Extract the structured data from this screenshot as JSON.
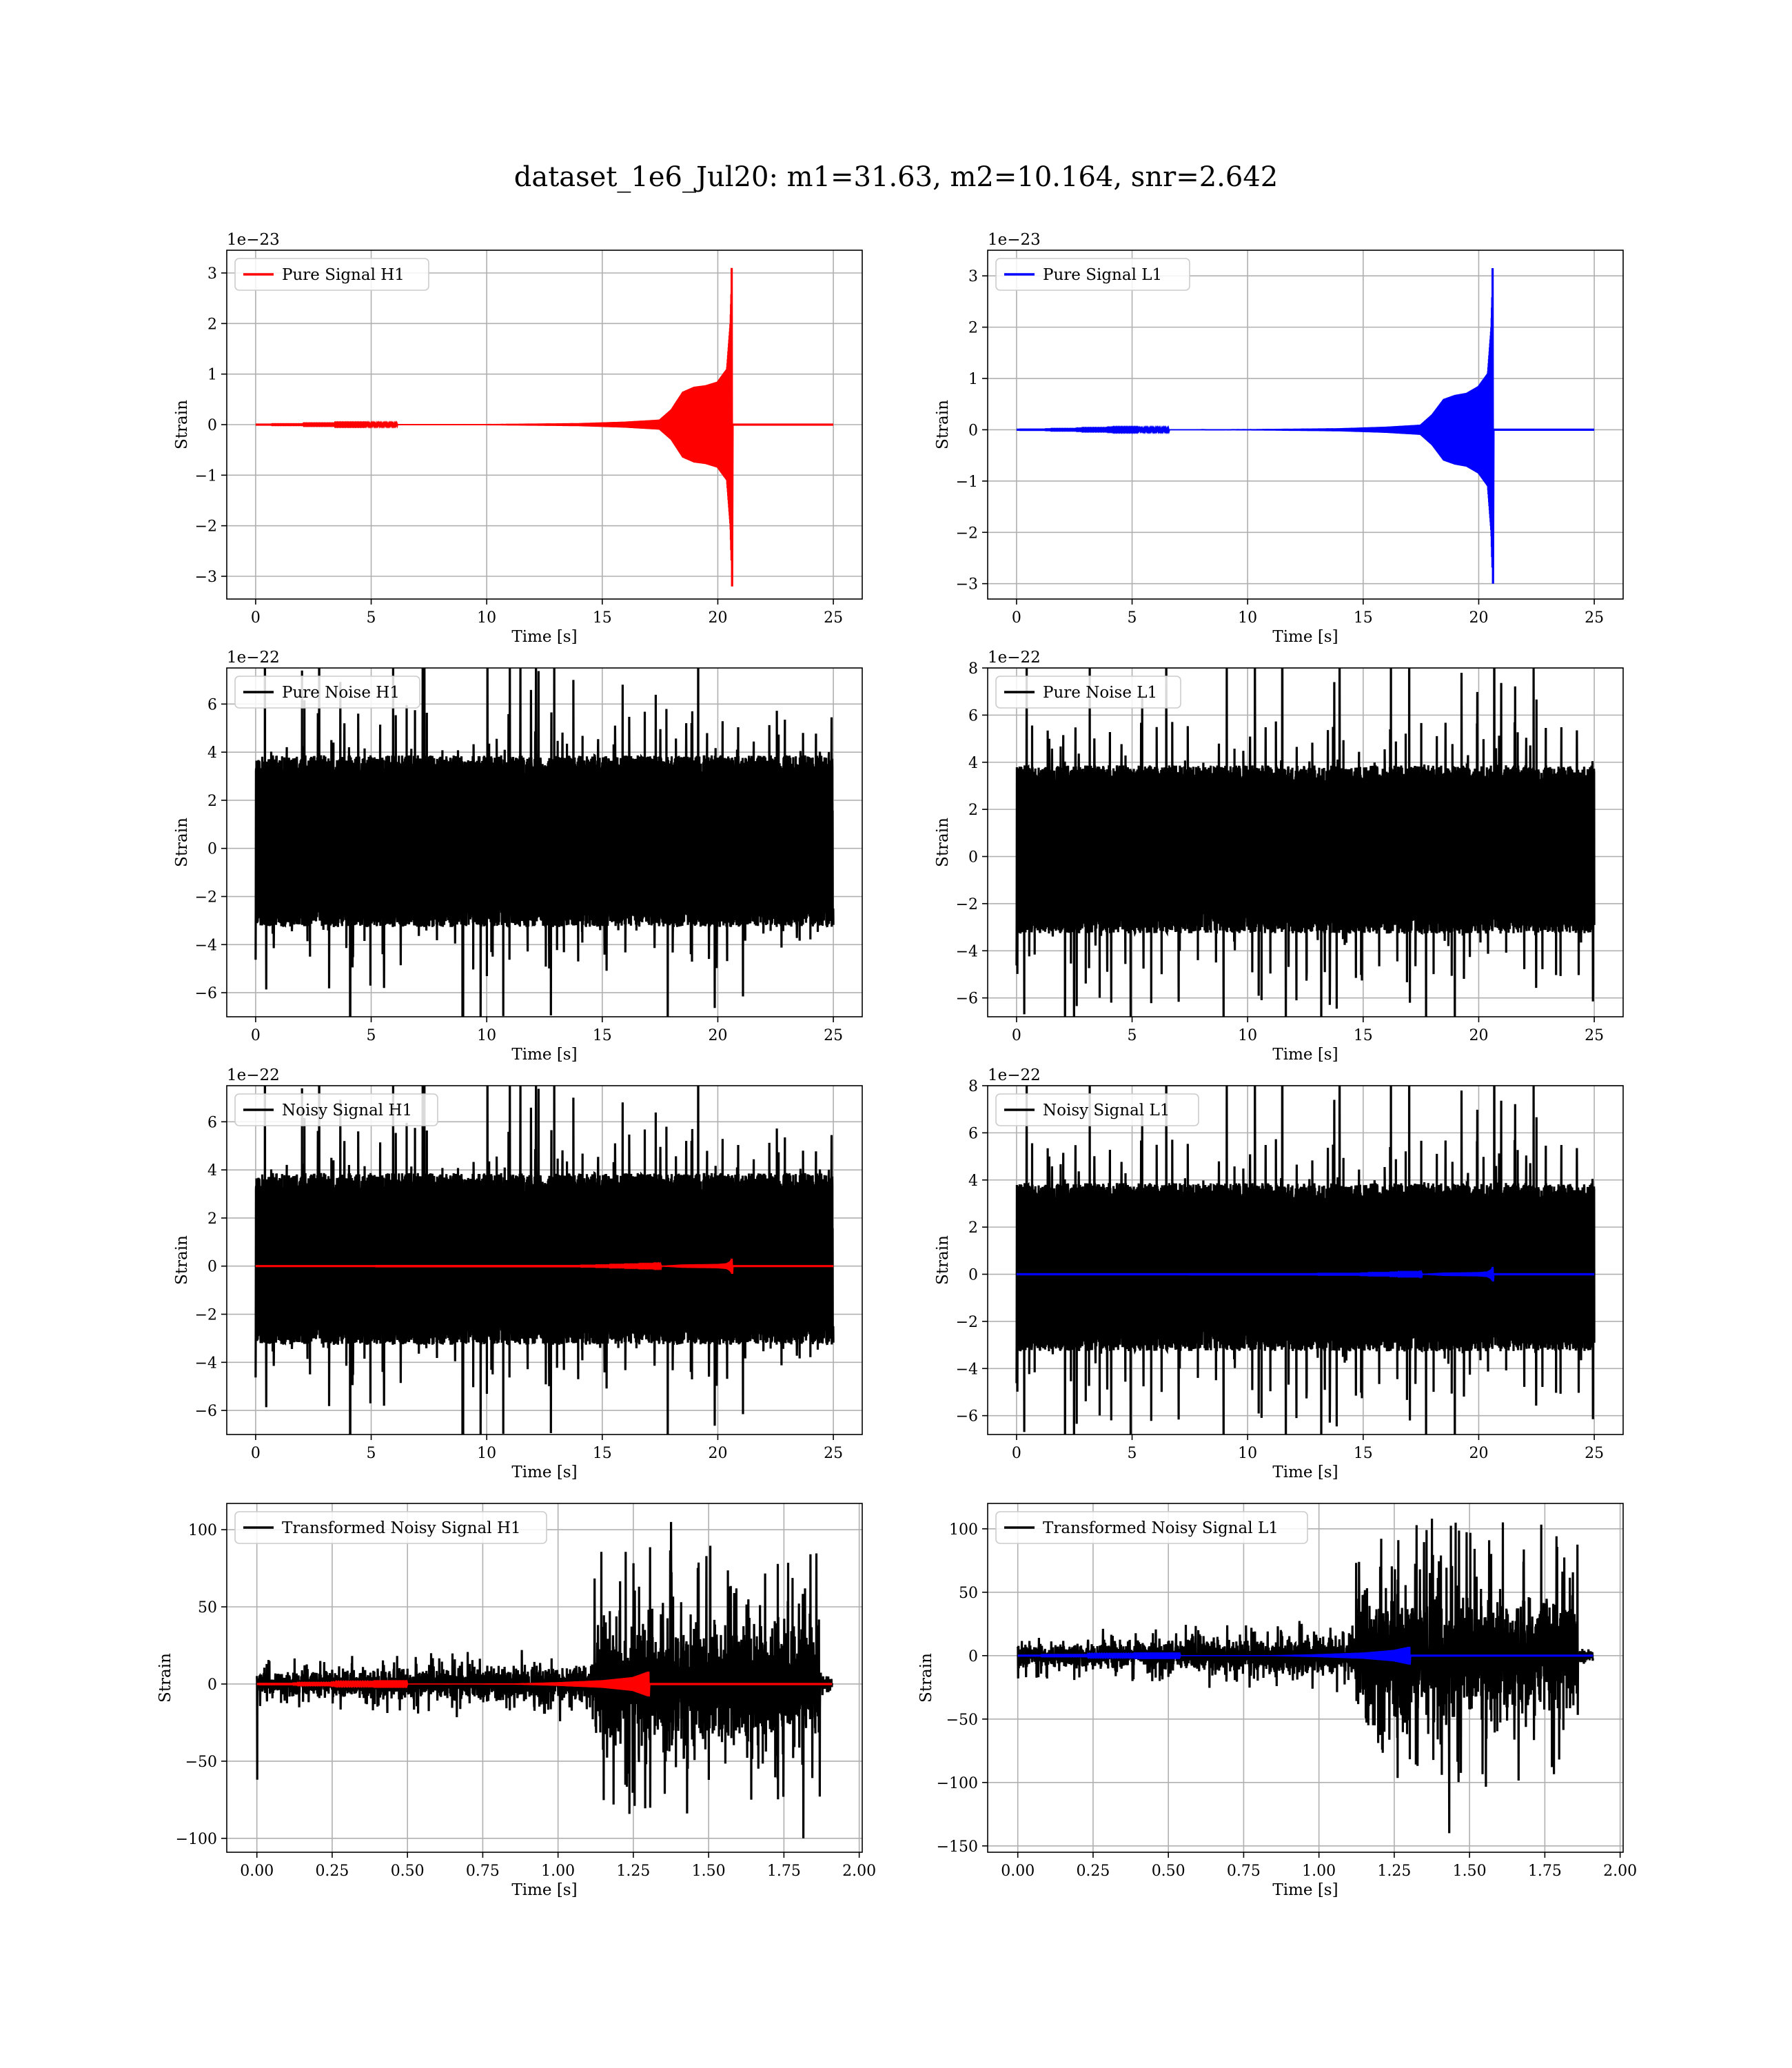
{
  "figure": {
    "suptitle": "dataset_1e6_Jul20: m1=31.63, m2=10.164, snr=2.642"
  },
  "chart_data": [
    {
      "type": "line",
      "id": "sig_h1",
      "legend": "Pure Signal H1",
      "legend_loc": "upper-left",
      "xlabel": "Time [s]",
      "ylabel": "Strain",
      "grid": true,
      "offset_text": "1e−23",
      "xlim": [
        -1.25,
        26.25
      ],
      "ylim": [
        -3.45,
        3.45
      ],
      "xticks": [
        0,
        5,
        10,
        15,
        20,
        25
      ],
      "xticklabels": [
        "0",
        "5",
        "10",
        "15",
        "20",
        "25"
      ],
      "yticks": [
        -3,
        -2,
        -1,
        0,
        1,
        2,
        3
      ],
      "yticklabels": [
        "−3",
        "−2",
        "−1",
        "0",
        "1",
        "2",
        "3"
      ],
      "series": [
        {
          "kind": "chirp",
          "color": "#ff0000",
          "t_start": 0,
          "t_end": 25,
          "t_merger": 20.6,
          "envelope": [
            [
              0,
              0
            ],
            [
              10,
              0.01
            ],
            [
              14,
              0.03
            ],
            [
              16,
              0.06
            ],
            [
              17.5,
              0.1
            ],
            [
              18,
              0.3
            ],
            [
              18.5,
              0.65
            ],
            [
              19,
              0.75
            ],
            [
              19.5,
              0.78
            ],
            [
              20,
              0.85
            ],
            [
              20.4,
              1.1
            ],
            [
              20.55,
              2.0
            ],
            [
              20.62,
              3.1
            ]
          ],
          "peak": [
            3.1,
            -3.2
          ],
          "amp_pos": 1,
          "amp_neg": 1
        }
      ]
    },
    {
      "type": "line",
      "id": "sig_l1",
      "legend": "Pure Signal L1",
      "legend_loc": "upper-left",
      "xlabel": "Time [s]",
      "ylabel": "Strain",
      "grid": true,
      "offset_text": "1e−23",
      "xlim": [
        -1.25,
        26.25
      ],
      "ylim": [
        -3.3,
        3.5
      ],
      "xticks": [
        0,
        5,
        10,
        15,
        20,
        25
      ],
      "xticklabels": [
        "0",
        "5",
        "10",
        "15",
        "20",
        "25"
      ],
      "yticks": [
        -3,
        -2,
        -1,
        0,
        1,
        2,
        3
      ],
      "yticklabels": [
        "−3",
        "−2",
        "−1",
        "0",
        "1",
        "2",
        "3"
      ],
      "series": [
        {
          "kind": "chirp",
          "color": "#0000ff",
          "t_start": 0,
          "t_end": 25,
          "t_merger": 20.6,
          "envelope": [
            [
              0,
              0
            ],
            [
              10,
              0.01
            ],
            [
              14,
              0.03
            ],
            [
              16,
              0.06
            ],
            [
              17.5,
              0.1
            ],
            [
              18,
              0.3
            ],
            [
              18.5,
              0.6
            ],
            [
              19,
              0.68
            ],
            [
              19.5,
              0.72
            ],
            [
              20,
              0.85
            ],
            [
              20.4,
              1.1
            ],
            [
              20.55,
              2.0
            ],
            [
              20.62,
              3.1
            ]
          ],
          "peak": [
            3.15,
            -3.0
          ],
          "amp_pos": 1,
          "amp_neg": 1
        }
      ]
    },
    {
      "type": "line",
      "id": "noise_h1",
      "legend": "Pure Noise H1",
      "legend_loc": "upper-left",
      "xlabel": "Time [s]",
      "ylabel": "Strain",
      "grid": true,
      "offset_text": "1e−22",
      "xlim": [
        -1.25,
        26.25
      ],
      "ylim": [
        -7.0,
        7.5
      ],
      "xticks": [
        0,
        5,
        10,
        15,
        20,
        25
      ],
      "xticklabels": [
        "0",
        "5",
        "10",
        "15",
        "20",
        "25"
      ],
      "yticks": [
        -6,
        -4,
        -2,
        0,
        2,
        4,
        6
      ],
      "yticklabels": [
        "−6",
        "−4",
        "−2",
        "0",
        "2",
        "4",
        "6"
      ],
      "series": [
        {
          "kind": "noise",
          "color": "#000000",
          "t_start": 0,
          "t_end": 25,
          "band": [
            -3.2,
            3.8
          ],
          "spike_hi": 7.0,
          "spike_lo": -6.4,
          "seed": 11
        }
      ]
    },
    {
      "type": "line",
      "id": "noise_l1",
      "legend": "Pure Noise L1",
      "legend_loc": "upper-left",
      "xlabel": "Time [s]",
      "ylabel": "Strain",
      "grid": true,
      "offset_text": "1e−22",
      "xlim": [
        -1.25,
        26.25
      ],
      "ylim": [
        -6.8,
        8.0
      ],
      "xticks": [
        0,
        5,
        10,
        15,
        20,
        25
      ],
      "xticklabels": [
        "0",
        "5",
        "10",
        "15",
        "20",
        "25"
      ],
      "yticks": [
        -6,
        -4,
        -2,
        0,
        2,
        4,
        6,
        8
      ],
      "yticklabels": [
        "−6",
        "−4",
        "−2",
        "0",
        "2",
        "4",
        "6",
        "8"
      ],
      "series": [
        {
          "kind": "noise",
          "color": "#000000",
          "t_start": 0,
          "t_end": 25,
          "band": [
            -3.2,
            3.8
          ],
          "spike_hi": 7.4,
          "spike_lo": -6.2,
          "seed": 23
        }
      ]
    },
    {
      "type": "line",
      "id": "noisy_h1",
      "legend": "Noisy Signal H1",
      "legend_loc": "upper-left",
      "xlabel": "Time [s]",
      "ylabel": "Strain",
      "grid": true,
      "offset_text": "1e−22",
      "xlim": [
        -1.25,
        26.25
      ],
      "ylim": [
        -7.0,
        7.5
      ],
      "xticks": [
        0,
        5,
        10,
        15,
        20,
        25
      ],
      "xticklabels": [
        "0",
        "5",
        "10",
        "15",
        "20",
        "25"
      ],
      "yticks": [
        -6,
        -4,
        -2,
        0,
        2,
        4,
        6
      ],
      "yticklabels": [
        "−6",
        "−4",
        "−2",
        "0",
        "2",
        "4",
        "6"
      ],
      "series": [
        {
          "kind": "noise",
          "color": "#000000",
          "t_start": 0,
          "t_end": 25,
          "band": [
            -3.2,
            3.8
          ],
          "spike_hi": 7.0,
          "spike_lo": -6.4,
          "seed": 11
        },
        {
          "kind": "chirp",
          "color": "#ff0000",
          "t_start": 0,
          "t_end": 25,
          "t_merger": 20.6,
          "envelope": [
            [
              0,
              0
            ],
            [
              14,
              0.002
            ],
            [
              17.5,
              0.01
            ],
            [
              18.5,
              0.07
            ],
            [
              20,
              0.09
            ],
            [
              20.4,
              0.12
            ],
            [
              20.55,
              0.2
            ],
            [
              20.62,
              0.31
            ]
          ],
          "peak": [
            0.31,
            -0.32
          ],
          "amp_pos": 1,
          "amp_neg": 1
        }
      ]
    },
    {
      "type": "line",
      "id": "noisy_l1",
      "legend": "Noisy Signal L1",
      "legend_loc": "upper-left",
      "xlabel": "Time [s]",
      "ylabel": "Strain",
      "grid": true,
      "offset_text": "1e−22",
      "xlim": [
        -1.25,
        26.25
      ],
      "ylim": [
        -6.8,
        8.0
      ],
      "xticks": [
        0,
        5,
        10,
        15,
        20,
        25
      ],
      "xticklabels": [
        "0",
        "5",
        "10",
        "15",
        "20",
        "25"
      ],
      "yticks": [
        -6,
        -4,
        -2,
        0,
        2,
        4,
        6,
        8
      ],
      "yticklabels": [
        "−6",
        "−4",
        "−2",
        "0",
        "2",
        "4",
        "6",
        "8"
      ],
      "series": [
        {
          "kind": "noise",
          "color": "#000000",
          "t_start": 0,
          "t_end": 25,
          "band": [
            -3.2,
            3.8
          ],
          "spike_hi": 7.4,
          "spike_lo": -6.2,
          "seed": 23
        },
        {
          "kind": "chirp",
          "color": "#0000ff",
          "t_start": 0,
          "t_end": 25,
          "t_merger": 20.6,
          "envelope": [
            [
              0,
              0
            ],
            [
              14,
              0.002
            ],
            [
              17.5,
              0.01
            ],
            [
              18.5,
              0.07
            ],
            [
              20,
              0.09
            ],
            [
              20.4,
              0.12
            ],
            [
              20.55,
              0.2
            ],
            [
              20.62,
              0.31
            ]
          ],
          "peak": [
            0.31,
            -0.3
          ],
          "amp_pos": 1,
          "amp_neg": 1
        }
      ]
    },
    {
      "type": "line",
      "id": "trans_h1",
      "legend": "Transformed Noisy Signal H1",
      "legend_loc": "upper-left",
      "xlabel": "Time [s]",
      "ylabel": "Strain",
      "grid": true,
      "offset_text": "",
      "xlim": [
        -0.1,
        2.01
      ],
      "ylim": [
        -109,
        117
      ],
      "xticks": [
        0,
        0.25,
        0.5,
        0.75,
        1.0,
        1.25,
        1.5,
        1.75,
        2.0
      ],
      "xticklabels": [
        "0.00",
        "0.25",
        "0.50",
        "0.75",
        "1.00",
        "1.25",
        "1.50",
        "1.75",
        "2.00"
      ],
      "yticks": [
        -100,
        -50,
        0,
        50,
        100
      ],
      "yticklabels": [
        "−100",
        "−50",
        "0",
        "50",
        "100"
      ],
      "series": [
        {
          "kind": "whitened",
          "color": "#000000",
          "t_start": 0,
          "t_end": 1.91,
          "t_jump": 1.12,
          "t_drop": 1.87,
          "amp_early": [
            6,
            10
          ],
          "amp_late": 32,
          "spike_hi": 105,
          "spike_lo": -100,
          "start_spike": -62,
          "seed": 7
        },
        {
          "kind": "chirp",
          "color": "#ff0000",
          "t_start": 0,
          "t_end": 1.91,
          "t_merger": 1.3,
          "envelope": [
            [
              0,
              0
            ],
            [
              0.85,
              0.3
            ],
            [
              1.0,
              1.2
            ],
            [
              1.15,
              2.5
            ],
            [
              1.25,
              4.5
            ],
            [
              1.3,
              8
            ]
          ],
          "peak": [
            8,
            -8
          ],
          "amp_pos": 1,
          "amp_neg": 1
        }
      ]
    },
    {
      "type": "line",
      "id": "trans_l1",
      "legend": "Transformed Noisy Signal L1",
      "legend_loc": "upper-left",
      "xlabel": "Time [s]",
      "ylabel": "Strain",
      "grid": true,
      "offset_text": "",
      "xlim": [
        -0.1,
        2.01
      ],
      "ylim": [
        -155,
        120
      ],
      "xticks": [
        0,
        0.25,
        0.5,
        0.75,
        1.0,
        1.25,
        1.5,
        1.75,
        2.0
      ],
      "xticklabels": [
        "0.00",
        "0.25",
        "0.50",
        "0.75",
        "1.00",
        "1.25",
        "1.50",
        "1.75",
        "2.00"
      ],
      "yticks": [
        -150,
        -100,
        -50,
        0,
        50,
        100
      ],
      "yticklabels": [
        "−150",
        "−100",
        "−50",
        "0",
        "50",
        "100"
      ],
      "series": [
        {
          "kind": "whitened",
          "color": "#000000",
          "t_start": 0,
          "t_end": 1.91,
          "t_jump": 1.12,
          "t_drop": 1.86,
          "amp_early": [
            7,
            12
          ],
          "amp_late": 38,
          "spike_hi": 108,
          "spike_lo": -140,
          "start_spike": -18,
          "seed": 19
        },
        {
          "kind": "chirp",
          "color": "#0000ff",
          "t_start": 0,
          "t_end": 1.91,
          "t_merger": 1.3,
          "envelope": [
            [
              0,
              0
            ],
            [
              0.85,
              0.3
            ],
            [
              1.0,
              1.2
            ],
            [
              1.15,
              2.5
            ],
            [
              1.25,
              4.5
            ],
            [
              1.3,
              7
            ]
          ],
          "peak": [
            7,
            -7
          ],
          "amp_pos": 1,
          "amp_neg": 1
        }
      ]
    }
  ]
}
